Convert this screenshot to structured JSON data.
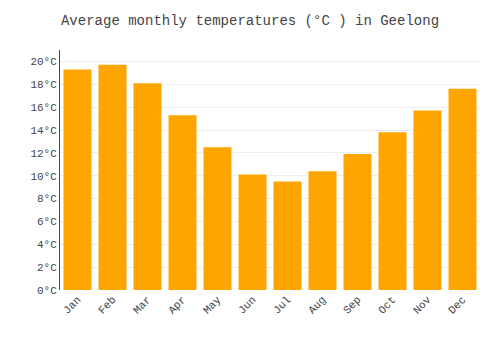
{
  "chart_data": {
    "type": "bar",
    "title": "Average monthly temperatures (°C ) in Geelong",
    "categories": [
      "Jan",
      "Feb",
      "Mar",
      "Apr",
      "May",
      "Jun",
      "Jul",
      "Aug",
      "Sep",
      "Oct",
      "Nov",
      "Dec"
    ],
    "values": [
      19.3,
      19.7,
      18.1,
      15.3,
      12.5,
      10.1,
      9.5,
      10.4,
      11.9,
      13.8,
      15.7,
      17.6
    ],
    "color": "#FFA500",
    "ylim": [
      0,
      21
    ],
    "yticks": [
      {
        "value": 0,
        "label": "0°C"
      },
      {
        "value": 2,
        "label": "2°C"
      },
      {
        "value": 4,
        "label": "4°C"
      },
      {
        "value": 6,
        "label": "6°C"
      },
      {
        "value": 8,
        "label": "8°C"
      },
      {
        "value": 10,
        "label": "10°C"
      },
      {
        "value": 12,
        "label": "12°C"
      },
      {
        "value": 14,
        "label": "14°C"
      },
      {
        "value": 16,
        "label": "16°C"
      },
      {
        "value": 18,
        "label": "18°C"
      },
      {
        "value": 20,
        "label": "20°C"
      }
    ],
    "grid": true
  }
}
